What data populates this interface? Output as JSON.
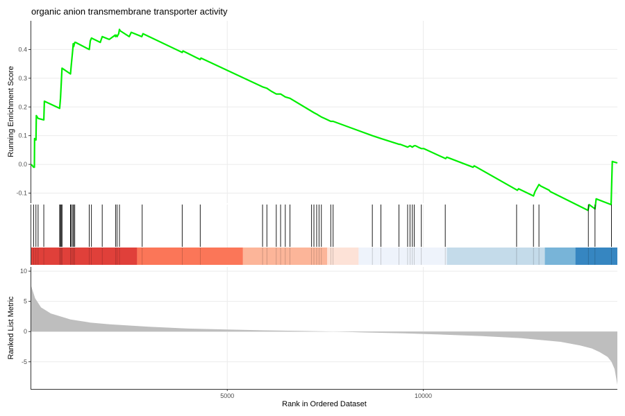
{
  "chart_data": {
    "type": "line",
    "title": "organic anion transmembrane transporter activity",
    "xlabel": "Rank in Ordered Dataset",
    "xlim": [
      0,
      14950
    ],
    "x_ticks": [
      {
        "value": 5000,
        "label": "5000"
      },
      {
        "value": 10000,
        "label": "10000"
      }
    ],
    "grid": true,
    "legend": "none",
    "panels": {
      "enrichment": {
        "ylabel": "Running Enrichment Score",
        "ylim": [
          -0.135,
          0.5
        ],
        "y_ticks": [
          {
            "value": -0.1,
            "label": "-0.1"
          },
          {
            "value": 0.0,
            "label": "0.0"
          },
          {
            "value": 0.1,
            "label": "0.1"
          },
          {
            "value": 0.2,
            "label": "0.2"
          },
          {
            "value": 0.3,
            "label": "0.3"
          },
          {
            "value": 0.4,
            "label": "0.4"
          }
        ],
        "line_color": "#00ee00",
        "series": [
          {
            "x": [
              0,
              60,
              80,
              85,
              120,
              130,
              175,
              320,
              335,
              725,
              745,
              785,
              1000,
              1020,
              1060,
              1070,
              1080,
              1110,
              1130,
              1480,
              1505,
              1535,
              1760,
              1810,
              1990,
              2140,
              2150,
              2170,
              2190,
              2230,
              2250,
              2270,
              2500,
              2550,
              2820,
              2850,
              3850,
              3870,
              4310,
              4330,
              5900,
              6010,
              6120,
              6250,
              6360,
              6480,
              6600,
              7150,
              7210,
              7280,
              7340,
              7400,
              7480,
              7640,
              7700,
              8700,
              8920,
              9380,
              9410,
              9600,
              9660,
              9720,
              9770,
              9800,
              9870,
              9950,
              10010,
              10570,
              10600,
              11270,
              11300,
              12400,
              12430,
              12810,
              12850,
              12950,
              12990,
              13210,
              13240,
              14200,
              14230,
              14380,
              14410,
              14790,
              14820,
              14950
            ],
            "y": [
              0.0,
              -0.01,
              -0.01,
              0.09,
              0.085,
              0.17,
              0.16,
              0.155,
              0.22,
              0.195,
              0.23,
              0.335,
              0.315,
              0.345,
              0.4,
              0.42,
              0.41,
              0.425,
              0.425,
              0.4,
              0.43,
              0.44,
              0.425,
              0.445,
              0.435,
              0.45,
              0.445,
              0.45,
              0.445,
              0.455,
              0.47,
              0.465,
              0.445,
              0.46,
              0.445,
              0.455,
              0.39,
              0.395,
              0.365,
              0.37,
              0.27,
              0.265,
              0.255,
              0.245,
              0.245,
              0.235,
              0.23,
              0.185,
              0.18,
              0.175,
              0.17,
              0.165,
              0.16,
              0.15,
              0.15,
              0.1,
              0.09,
              0.07,
              0.07,
              0.06,
              0.065,
              0.06,
              0.065,
              0.065,
              0.06,
              0.055,
              0.055,
              0.02,
              0.025,
              -0.01,
              -0.005,
              -0.09,
              -0.085,
              -0.11,
              -0.095,
              -0.07,
              -0.075,
              -0.09,
              -0.095,
              -0.16,
              -0.14,
              -0.155,
              -0.12,
              -0.14,
              0.01,
              0.005
            ]
          }
        ]
      },
      "hits": {
        "positions": [
          60,
          120,
          175,
          320,
          725,
          745,
          765,
          785,
          1000,
          1020,
          1060,
          1080,
          1110,
          1480,
          1535,
          1810,
          2150,
          2190,
          2250,
          2830,
          3850,
          4310,
          5900,
          6010,
          6250,
          6360,
          6480,
          6600,
          7150,
          7210,
          7280,
          7340,
          7400,
          7640,
          7700,
          8700,
          8920,
          9380,
          9600,
          9660,
          9720,
          9770,
          9950,
          10560,
          12380,
          12810,
          12950,
          14210,
          14380,
          14800
        ],
        "color_bands": [
          {
            "start": 0,
            "end": 2700,
            "color": "#e0403a"
          },
          {
            "start": 2700,
            "end": 5400,
            "color": "#fb7658"
          },
          {
            "start": 5400,
            "end": 7550,
            "color": "#fcb599"
          },
          {
            "start": 7550,
            "end": 8350,
            "color": "#fde2d7"
          },
          {
            "start": 8350,
            "end": 10600,
            "color": "#eef3fb"
          },
          {
            "start": 10600,
            "end": 13100,
            "color": "#c4dbea"
          },
          {
            "start": 13100,
            "end": 13880,
            "color": "#78b4d8"
          },
          {
            "start": 13880,
            "end": 14950,
            "color": "#3686c1"
          }
        ]
      },
      "ranked": {
        "ylabel": "Ranked List Metric",
        "ylim": [
          -9.5,
          10.7
        ],
        "y_ticks": [
          {
            "value": -5,
            "label": "-5"
          },
          {
            "value": 0,
            "label": "0"
          },
          {
            "value": 5,
            "label": "5"
          },
          {
            "value": 10,
            "label": "10"
          }
        ],
        "fill_color": "#bebebe",
        "x": [
          0,
          100,
          250,
          500,
          1000,
          1500,
          2000,
          3000,
          4000,
          5000,
          6000,
          7000,
          7700,
          8500,
          9500,
          10500,
          11500,
          12500,
          13000,
          13500,
          14000,
          14300,
          14500,
          14700,
          14800,
          14880,
          14950
        ],
        "values": [
          7.5,
          5.5,
          4.0,
          3.0,
          2.0,
          1.5,
          1.2,
          0.8,
          0.5,
          0.35,
          0.2,
          0.1,
          0.0,
          -0.15,
          -0.3,
          -0.5,
          -0.75,
          -1.1,
          -1.4,
          -1.7,
          -2.3,
          -2.8,
          -3.4,
          -4.2,
          -5.0,
          -6.2,
          -8.8
        ]
      }
    }
  }
}
